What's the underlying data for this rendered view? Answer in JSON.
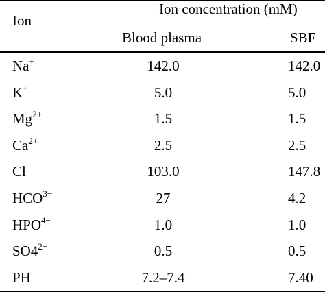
{
  "header": {
    "ion_label": "Ion",
    "group_label": "Ion concentration (mM)",
    "col_blood_plasma": "Blood plasma",
    "col_sbf": "SBF"
  },
  "rows": [
    {
      "ion_base": "Na",
      "ion_sup": "+",
      "plasma": "142.0",
      "sbf": "142.0"
    },
    {
      "ion_base": "K",
      "ion_sup": "+",
      "plasma": "5.0",
      "sbf": "5.0"
    },
    {
      "ion_base": "Mg",
      "ion_sup": "2+",
      "plasma": "1.5",
      "sbf": "1.5"
    },
    {
      "ion_base": "Ca",
      "ion_sup": "2+",
      "plasma": "2.5",
      "sbf": "2.5"
    },
    {
      "ion_base": "Cl",
      "ion_sup": "−",
      "plasma": "103.0",
      "sbf": "147.8"
    },
    {
      "ion_base": "HCO",
      "ion_sup": "3−",
      "plasma": "27",
      "sbf": "4.2"
    },
    {
      "ion_base": "HPO",
      "ion_sup": "4−",
      "plasma": "1.0",
      "sbf": "1.0"
    },
    {
      "ion_base": "SO4",
      "ion_sup": "2−",
      "plasma": "0.5",
      "sbf": "0.5"
    },
    {
      "ion_base": "PH",
      "ion_sup": "",
      "plasma": "7.2–7.4",
      "sbf": "7.40"
    }
  ]
}
